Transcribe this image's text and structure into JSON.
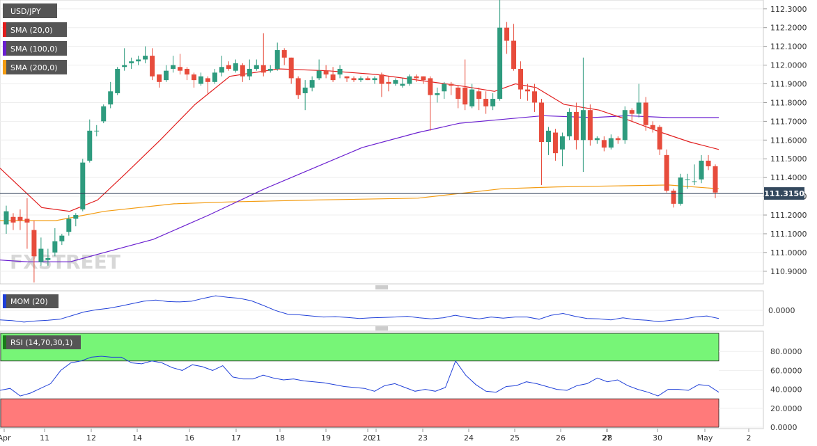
{
  "chart_data": [
    {
      "type": "candlestick",
      "symbol": "USD/JPY",
      "watermark": "FXSTREET",
      "ylim": [
        110.84,
        112.34
      ],
      "yticks": [
        "112.3000",
        "112.2000",
        "112.1000",
        "112.0000",
        "111.9000",
        "111.8000",
        "111.7000",
        "111.6000",
        "111.5000",
        "111.4000",
        "111.3000",
        "111.2000",
        "111.1000",
        "111.0000",
        "110.9000"
      ],
      "current_price": "111.3150",
      "legend": [
        {
          "label": "USD/JPY",
          "color": "#555555"
        },
        {
          "label": "SMA (20,0)",
          "color": "#e11d1d"
        },
        {
          "label": "SMA (100,0)",
          "color": "#6a1fd0"
        },
        {
          "label": "SMA (200,0)",
          "color": "#f39c12"
        }
      ],
      "x_labels": [
        "Apr",
        "11",
        "12",
        "14",
        "16",
        "17",
        "18",
        "19",
        "20",
        "21",
        "23",
        "24",
        "25",
        "26",
        "27",
        "28",
        "30",
        "May",
        "2"
      ],
      "candles": [
        [
          111.15,
          111.22,
          111.25,
          111.1
        ],
        [
          111.19,
          111.16,
          111.21,
          111.12
        ],
        [
          111.19,
          111.17,
          111.23,
          111.12
        ],
        [
          111.18,
          111.16,
          111.29,
          111.02
        ],
        [
          111.12,
          110.98,
          111.17,
          110.84
        ],
        [
          110.95,
          111.02,
          111.08,
          110.93
        ],
        [
          110.96,
          110.97,
          111.02,
          110.93
        ],
        [
          111.0,
          111.06,
          111.13,
          110.98
        ],
        [
          111.06,
          111.09,
          111.1,
          111.04
        ],
        [
          111.11,
          111.18,
          111.2,
          111.09
        ],
        [
          111.18,
          111.2,
          111.21,
          111.14
        ],
        [
          111.23,
          111.48,
          111.5,
          111.22
        ],
        [
          111.49,
          111.65,
          111.71,
          111.48
        ],
        [
          111.65,
          111.65,
          111.68,
          111.62
        ],
        [
          111.7,
          111.78,
          111.79,
          111.69
        ],
        [
          111.79,
          111.86,
          111.91,
          111.77
        ],
        [
          111.85,
          111.98,
          111.99,
          111.84
        ],
        [
          111.99,
          112.0,
          112.09,
          111.97
        ],
        [
          112.01,
          112.02,
          112.04,
          111.98
        ],
        [
          112.02,
          112.03,
          112.05,
          112.0
        ],
        [
          112.03,
          112.05,
          112.1,
          112.01
        ],
        [
          112.05,
          111.94,
          112.09,
          111.92
        ],
        [
          111.95,
          111.91,
          111.95,
          111.88
        ],
        [
          111.92,
          111.97,
          112.0,
          111.91
        ],
        [
          111.98,
          112.0,
          112.05,
          111.96
        ],
        [
          111.99,
          111.97,
          112.06,
          111.95
        ],
        [
          111.98,
          111.95,
          111.99,
          111.92
        ],
        [
          111.95,
          111.92,
          111.96,
          111.88
        ],
        [
          111.9,
          111.94,
          111.96,
          111.89
        ],
        [
          111.93,
          111.91,
          111.94,
          111.84
        ],
        [
          111.91,
          111.96,
          111.98,
          111.9
        ],
        [
          111.96,
          111.99,
          112.05,
          111.94
        ],
        [
          112.0,
          111.98,
          112.02,
          111.97
        ],
        [
          111.97,
          112.01,
          112.03,
          111.96
        ],
        [
          112.0,
          111.94,
          112.01,
          111.91
        ],
        [
          111.94,
          111.98,
          112.03,
          111.92
        ],
        [
          111.98,
          112.0,
          112.03,
          111.97
        ],
        [
          112.0,
          111.96,
          112.17,
          111.94
        ],
        [
          111.97,
          111.98,
          112.0,
          111.96
        ],
        [
          111.98,
          112.08,
          112.12,
          111.97
        ],
        [
          112.08,
          112.04,
          112.09,
          112.0
        ],
        [
          112.04,
          111.93,
          112.04,
          111.9
        ],
        [
          111.93,
          111.84,
          111.94,
          111.82
        ],
        [
          111.85,
          111.88,
          111.92,
          111.76
        ],
        [
          111.88,
          111.92,
          111.94,
          111.86
        ],
        [
          111.93,
          111.97,
          112.03,
          111.92
        ],
        [
          111.97,
          111.95,
          112.0,
          111.93
        ],
        [
          111.95,
          111.92,
          111.99,
          111.91
        ],
        [
          111.95,
          111.98,
          112.0,
          111.93
        ],
        [
          111.94,
          111.93,
          111.94,
          111.91
        ],
        [
          111.93,
          111.92,
          111.94,
          111.91
        ],
        [
          111.92,
          111.93,
          111.94,
          111.91
        ],
        [
          111.93,
          111.92,
          111.94,
          111.92
        ],
        [
          111.92,
          111.93,
          111.94,
          111.9
        ],
        [
          111.95,
          111.9,
          111.96,
          111.83
        ],
        [
          111.91,
          111.9,
          111.94,
          111.86
        ],
        [
          111.9,
          111.92,
          111.93,
          111.89
        ],
        [
          111.89,
          111.9,
          111.93,
          111.88
        ],
        [
          111.9,
          111.94,
          111.95,
          111.89
        ],
        [
          111.94,
          111.93,
          111.95,
          111.91
        ],
        [
          111.94,
          111.92,
          111.94,
          111.9
        ],
        [
          111.93,
          111.84,
          111.94,
          111.65
        ],
        [
          111.84,
          111.85,
          111.88,
          111.8
        ],
        [
          111.86,
          111.9,
          111.91,
          111.82
        ],
        [
          111.9,
          111.89,
          111.91,
          111.84
        ],
        [
          111.88,
          111.82,
          111.89,
          111.77
        ],
        [
          111.88,
          111.79,
          112.03,
          111.76
        ],
        [
          111.78,
          111.87,
          111.9,
          111.77
        ],
        [
          111.86,
          111.82,
          111.88,
          111.76
        ],
        [
          111.82,
          111.78,
          111.86,
          111.74
        ],
        [
          111.78,
          111.82,
          111.85,
          111.76
        ],
        [
          111.82,
          112.2,
          112.39,
          111.81
        ],
        [
          112.2,
          112.13,
          112.23,
          112.06
        ],
        [
          112.13,
          111.98,
          112.22,
          111.97
        ],
        [
          111.98,
          111.87,
          112.02,
          111.82
        ],
        [
          111.87,
          111.86,
          111.9,
          111.81
        ],
        [
          111.86,
          111.8,
          111.9,
          111.75
        ],
        [
          111.8,
          111.59,
          111.82,
          111.36
        ],
        [
          111.59,
          111.65,
          111.67,
          111.52
        ],
        [
          111.64,
          111.53,
          111.66,
          111.49
        ],
        [
          111.55,
          111.62,
          111.64,
          111.46
        ],
        [
          111.62,
          111.75,
          111.77,
          111.6
        ],
        [
          111.75,
          111.6,
          111.8,
          111.55
        ],
        [
          111.6,
          111.76,
          112.04,
          111.43
        ],
        [
          111.76,
          111.6,
          111.79,
          111.57
        ],
        [
          111.6,
          111.61,
          111.62,
          111.58
        ],
        [
          111.6,
          111.56,
          111.62,
          111.54
        ],
        [
          111.56,
          111.61,
          111.63,
          111.55
        ],
        [
          111.61,
          111.6,
          111.62,
          111.58
        ],
        [
          111.6,
          111.76,
          111.78,
          111.58
        ],
        [
          111.76,
          111.74,
          111.77,
          111.7
        ],
        [
          111.74,
          111.8,
          111.9,
          111.72
        ],
        [
          111.8,
          111.68,
          111.83,
          111.65
        ],
        [
          111.68,
          111.66,
          111.7,
          111.64
        ],
        [
          111.67,
          111.55,
          111.68,
          111.52
        ],
        [
          111.52,
          111.33,
          111.55,
          111.32
        ],
        [
          111.33,
          111.26,
          111.34,
          111.24
        ],
        [
          111.26,
          111.4,
          111.42,
          111.25
        ],
        [
          111.39,
          111.39,
          111.42,
          111.34
        ],
        [
          111.38,
          111.38,
          111.47,
          111.36
        ],
        [
          111.39,
          111.49,
          111.52,
          111.37
        ],
        [
          111.49,
          111.46,
          111.52,
          111.44
        ],
        [
          111.46,
          111.32,
          111.47,
          111.29
        ]
      ],
      "sma20": [
        [
          0,
          111.45
        ],
        [
          60,
          111.24
        ],
        [
          100,
          111.22
        ],
        [
          140,
          111.28
        ],
        [
          180,
          111.42
        ],
        [
          230,
          111.6
        ],
        [
          280,
          111.79
        ],
        [
          330,
          111.94
        ],
        [
          400,
          111.98
        ],
        [
          470,
          111.97
        ],
        [
          540,
          111.95
        ],
        [
          600,
          111.92
        ],
        [
          660,
          111.89
        ],
        [
          710,
          111.86
        ],
        [
          740,
          111.9
        ],
        [
          770,
          111.88
        ],
        [
          810,
          111.79
        ],
        [
          860,
          111.76
        ],
        [
          900,
          111.71
        ],
        [
          950,
          111.64
        ],
        [
          990,
          111.59
        ],
        [
          1032,
          111.55
        ]
      ],
      "sma100": [
        [
          0,
          110.96
        ],
        [
          40,
          110.95
        ],
        [
          100,
          110.95
        ],
        [
          140,
          110.99
        ],
        [
          220,
          111.07
        ],
        [
          300,
          111.2
        ],
        [
          380,
          111.34
        ],
        [
          450,
          111.45
        ],
        [
          520,
          111.56
        ],
        [
          600,
          111.64
        ],
        [
          660,
          111.69
        ],
        [
          720,
          111.71
        ],
        [
          780,
          111.73
        ],
        [
          850,
          111.72
        ],
        [
          900,
          111.73
        ],
        [
          960,
          111.72
        ],
        [
          1032,
          111.72
        ]
      ],
      "sma200": [
        [
          0,
          111.17
        ],
        [
          80,
          111.17
        ],
        [
          150,
          111.22
        ],
        [
          250,
          111.26
        ],
        [
          330,
          111.27
        ],
        [
          450,
          111.28
        ],
        [
          600,
          111.29
        ],
        [
          720,
          111.34
        ],
        [
          800,
          111.35
        ],
        [
          960,
          111.36
        ],
        [
          1032,
          111.34
        ]
      ]
    },
    {
      "type": "line",
      "title": "MOM (20)",
      "ytick": "0.0000",
      "color": "#1f3fd8",
      "values": [
        -0.08,
        -0.1,
        -0.14,
        -0.11,
        -0.09,
        -0.06,
        0.04,
        0.14,
        0.2,
        0.24,
        0.3,
        0.37,
        0.44,
        0.47,
        0.43,
        0.42,
        0.44,
        0.52,
        0.59,
        0.55,
        0.52,
        0.45,
        0.32,
        0.18,
        0.08,
        0.06,
        0.03,
        0.0,
        0.01,
        -0.01,
        -0.04,
        -0.02,
        -0.01,
        0.0,
        0.02,
        -0.02,
        -0.05,
        -0.02,
        0.05,
        -0.01,
        -0.05,
        0.0,
        -0.03,
        0.0,
        0.0,
        -0.06,
        0.05,
        0.1,
        0.02,
        -0.04,
        -0.05,
        -0.08,
        -0.02,
        -0.07,
        -0.09,
        -0.13,
        -0.09,
        -0.06,
        0.0,
        0.03,
        -0.04
      ]
    },
    {
      "type": "line",
      "title": "RSI (14,70,30,1)",
      "yticks": [
        "80.0000",
        "60.0000",
        "40.0000",
        "20.0000",
        "0.0000"
      ],
      "ylim": [
        0,
        100
      ],
      "overbought": 70,
      "oversold": 30,
      "color": "#1f3fd8",
      "values": [
        39,
        41,
        33,
        36,
        41,
        46,
        60,
        68,
        70,
        74,
        75,
        74,
        74,
        68,
        67,
        70,
        68,
        63,
        60,
        66,
        64,
        60,
        65,
        53,
        51,
        51,
        55,
        52,
        50,
        51,
        49,
        48,
        47,
        45,
        43,
        42,
        41,
        38,
        44,
        46,
        42,
        38,
        40,
        38,
        42,
        70,
        55,
        45,
        38,
        37,
        43,
        44,
        48,
        46,
        43,
        40,
        39,
        44,
        46,
        52,
        48,
        50,
        44,
        40,
        37,
        33,
        40,
        40,
        39,
        45,
        44,
        37
      ]
    }
  ]
}
